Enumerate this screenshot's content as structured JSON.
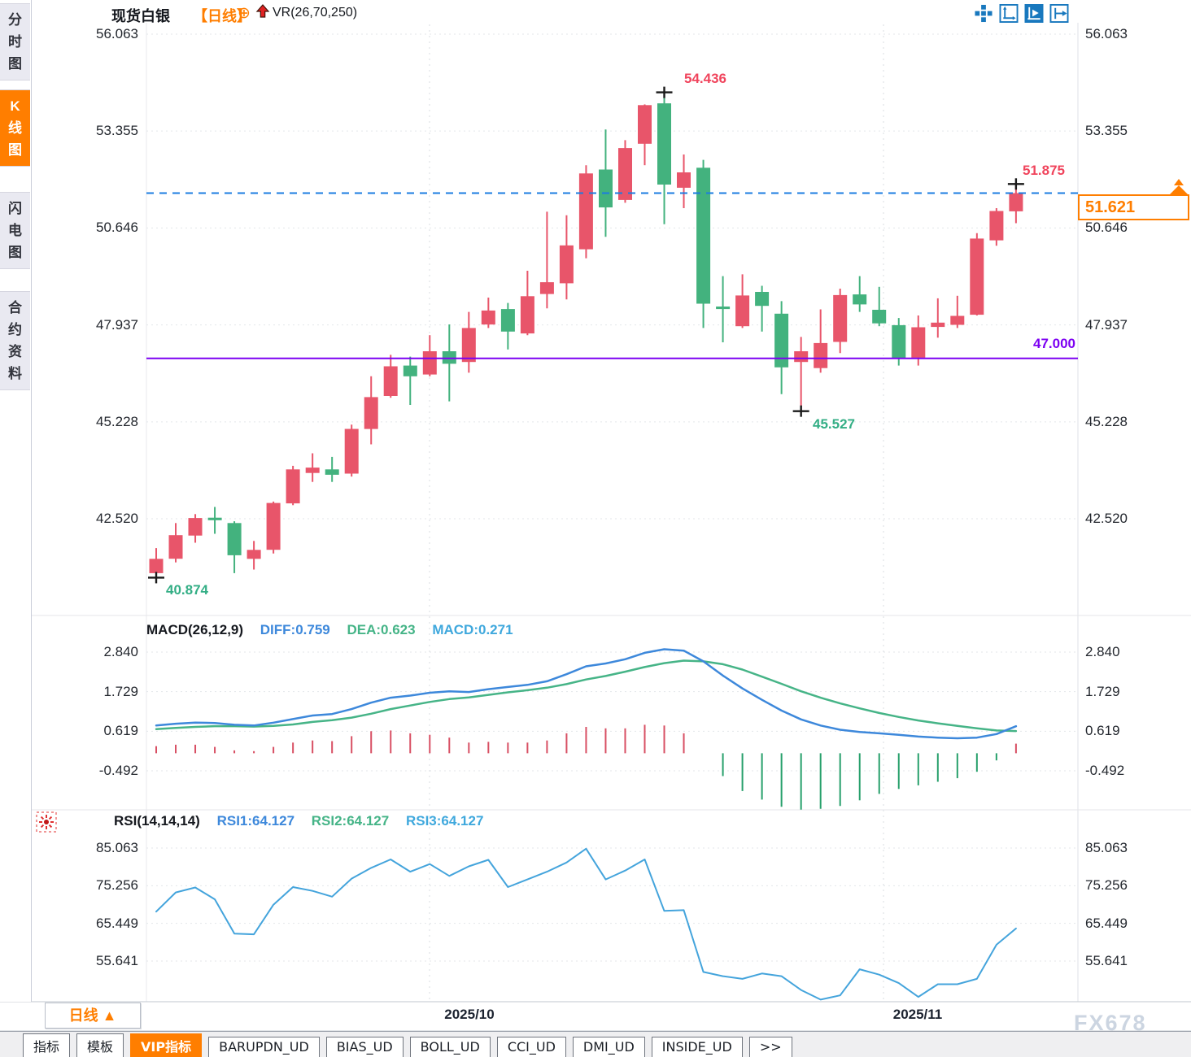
{
  "window": {
    "watermark": "FX678"
  },
  "sidebar": {
    "tabs": [
      {
        "label": "分时图",
        "active": false
      },
      {
        "label": "K线图",
        "active": true
      },
      {
        "label": "闪电图",
        "active": false
      },
      {
        "label": "合约资料",
        "active": false
      }
    ]
  },
  "header": {
    "symbol": "现货白银",
    "period": "【日线】",
    "overlay_add": "⊕",
    "indicator": "VR(26,70,250)"
  },
  "toolbar": {
    "icon_names": [
      "pan-crosshair-icon",
      "axis-range-icon",
      "axis-auto-fit-icon",
      "scroll-to-latest-icon"
    ],
    "active_index": 2,
    "color": "#1878be"
  },
  "period_selector": {
    "label": "日线",
    "arrow": "▲"
  },
  "x_axis": {
    "labels": [
      "2025/10",
      "2025/11"
    ]
  },
  "bottom_tabs": {
    "items": [
      {
        "label": "指标",
        "active": false
      },
      {
        "label": "模板",
        "active": false
      },
      {
        "label": "VIP指标",
        "active": true
      },
      {
        "label": "BARUPDN_UD",
        "active": false
      },
      {
        "label": "BIAS_UD",
        "active": false
      },
      {
        "label": "BOLL_UD",
        "active": false
      },
      {
        "label": "CCI_UD",
        "active": false
      },
      {
        "label": "DMI_UD",
        "active": false
      },
      {
        "label": "INSIDE_UD",
        "active": false
      },
      {
        "label": ">>",
        "active": false
      }
    ]
  },
  "colors": {
    "up_candle": "#e8556a",
    "down_candle": "#43b27e",
    "hist_up": "#d84f63",
    "hist_down": "#27a06b",
    "diff_line": "#3d88db",
    "dea_line": "#46b487",
    "rsi_line": "#44a4dc",
    "current_price_line": "#1b7ce0",
    "support_line": "#7c00f2",
    "accent_orange": "#ff7e00",
    "annotation_red": "#f0445c",
    "annotation_green": "#33ae85"
  },
  "chart_data": [
    {
      "type": "candlestick",
      "symbol": "现货白银",
      "period": "日线",
      "y_axis": {
        "labels": [
          "56.063",
          "53.355",
          "50.646",
          "47.937",
          "45.228",
          "42.520"
        ],
        "min": 40.5,
        "max": 56.3
      },
      "grid": true,
      "candles": {
        "open": [
          41.0,
          41.4,
          42.05,
          42.55,
          42.4,
          41.4,
          41.65,
          42.95,
          43.8,
          43.9,
          43.78,
          45.03,
          45.95,
          46.8,
          46.55,
          47.2,
          46.9,
          47.95,
          48.38,
          47.7,
          48.8,
          49.1,
          50.05,
          52.28,
          51.43,
          53.0,
          54.13,
          51.77,
          52.33,
          48.45,
          47.9,
          48.86,
          48.25,
          46.9,
          46.73,
          47.46,
          48.79,
          48.36,
          47.93,
          47.02,
          47.88,
          47.94,
          48.22,
          50.3,
          51.11
        ],
        "high": [
          41.7,
          42.4,
          42.65,
          42.85,
          42.45,
          41.9,
          43.0,
          44.0,
          44.35,
          44.25,
          45.15,
          46.5,
          47.1,
          47.05,
          47.65,
          47.95,
          48.3,
          48.7,
          48.55,
          49.45,
          51.1,
          51.0,
          52.4,
          53.4,
          53.1,
          54.1,
          54.436,
          52.7,
          52.55,
          49.3,
          49.35,
          49.03,
          48.6,
          47.6,
          48.37,
          48.95,
          49.3,
          49.0,
          48.13,
          48.2,
          48.68,
          48.75,
          50.5,
          51.2,
          51.875
        ],
        "low": [
          40.874,
          41.3,
          41.85,
          42.1,
          41.0,
          41.1,
          41.55,
          42.9,
          43.55,
          43.55,
          43.7,
          44.6,
          45.9,
          45.7,
          46.5,
          45.8,
          46.6,
          47.85,
          47.25,
          47.65,
          48.4,
          48.65,
          49.8,
          50.4,
          51.35,
          52.4,
          50.75,
          51.2,
          47.85,
          47.45,
          47.85,
          47.75,
          46.0,
          45.527,
          46.6,
          47.15,
          48.3,
          47.9,
          46.8,
          46.8,
          47.58,
          47.85,
          48.2,
          50.15,
          50.78
        ],
        "close": [
          41.4,
          42.06,
          42.54,
          42.48,
          41.5,
          41.65,
          42.96,
          43.9,
          43.95,
          43.75,
          45.03,
          45.92,
          46.78,
          46.5,
          47.2,
          46.85,
          47.85,
          48.34,
          47.75,
          48.74,
          49.13,
          50.16,
          52.17,
          51.22,
          52.88,
          54.08,
          51.86,
          52.2,
          48.53,
          48.38,
          48.76,
          48.47,
          46.75,
          47.2,
          47.43,
          48.77,
          48.51,
          47.98,
          46.99,
          47.87,
          48.0,
          48.19,
          50.35,
          51.12,
          51.62
        ]
      },
      "annotations": {
        "high": {
          "text": "54.436",
          "candle": 26
        },
        "low": {
          "text": "40.874",
          "candle": 0
        },
        "swing_low": {
          "text": "45.527",
          "candle": 33
        },
        "last_high": {
          "text": "51.875",
          "candle": 44
        },
        "support": {
          "text": "47.000",
          "price": 47.0
        },
        "current_price": {
          "text": "51.621",
          "price": 51.621
        }
      }
    },
    {
      "type": "macd",
      "label": "MACD(26,12,9)",
      "legend": {
        "diff": "DIFF:0.759",
        "dea": "DEA:0.623",
        "macd": "MACD:0.271"
      },
      "y_axis": {
        "labels": [
          "2.840",
          "1.729",
          "0.619",
          "-0.492"
        ]
      },
      "series": {
        "diff": [
          0.78,
          0.83,
          0.86,
          0.85,
          0.8,
          0.78,
          0.86,
          0.96,
          1.06,
          1.1,
          1.24,
          1.42,
          1.56,
          1.62,
          1.7,
          1.74,
          1.72,
          1.8,
          1.86,
          1.92,
          2.02,
          2.22,
          2.44,
          2.52,
          2.64,
          2.82,
          2.92,
          2.88,
          2.58,
          2.18,
          1.82,
          1.5,
          1.2,
          0.95,
          0.78,
          0.66,
          0.6,
          0.56,
          0.52,
          0.47,
          0.44,
          0.42,
          0.44,
          0.54,
          0.759
        ],
        "dea": [
          0.68,
          0.71,
          0.74,
          0.76,
          0.76,
          0.75,
          0.77,
          0.81,
          0.88,
          0.93,
          1.0,
          1.11,
          1.24,
          1.34,
          1.44,
          1.52,
          1.57,
          1.64,
          1.71,
          1.77,
          1.84,
          1.94,
          2.07,
          2.17,
          2.29,
          2.42,
          2.53,
          2.6,
          2.58,
          2.5,
          2.35,
          2.15,
          1.95,
          1.74,
          1.56,
          1.4,
          1.26,
          1.13,
          1.02,
          0.92,
          0.84,
          0.77,
          0.7,
          0.64,
          0.623
        ],
        "hist": [
          0.2,
          0.24,
          0.24,
          0.18,
          0.08,
          0.06,
          0.18,
          0.3,
          0.36,
          0.34,
          0.48,
          0.62,
          0.64,
          0.56,
          0.52,
          0.44,
          0.3,
          0.32,
          0.3,
          0.3,
          0.36,
          0.56,
          0.74,
          0.7,
          0.7,
          0.8,
          0.78,
          0.56,
          0.0,
          -0.64,
          -1.06,
          -1.3,
          -1.5,
          -1.58,
          -1.56,
          -1.48,
          -1.32,
          -1.14,
          -1.0,
          -0.9,
          -0.8,
          -0.7,
          -0.52,
          -0.2,
          0.271
        ]
      }
    },
    {
      "type": "rsi",
      "label": "RSI(14,14,14)",
      "legend": {
        "rsi1": "RSI1:64.127",
        "rsi2": "RSI2:64.127",
        "rsi3": "RSI3:64.127"
      },
      "y_axis": {
        "labels": [
          "85.063",
          "75.256",
          "65.449",
          "55.641"
        ]
      },
      "series": {
        "rsi": [
          68.5,
          73.5,
          74.8,
          71.7,
          62.8,
          62.6,
          70.3,
          74.9,
          73.9,
          72.4,
          77.1,
          79.9,
          82.1,
          78.9,
          80.9,
          77.8,
          80.3,
          82.0,
          74.9,
          76.9,
          78.9,
          81.3,
          84.9,
          76.9,
          79.2,
          82.1,
          68.7,
          68.9,
          52.8,
          51.7,
          51.0,
          52.4,
          51.7,
          48.1,
          45.6,
          46.7,
          53.5,
          52.1,
          49.9,
          46.3,
          49.6,
          49.6,
          51.0,
          59.9,
          64.127
        ]
      }
    }
  ]
}
